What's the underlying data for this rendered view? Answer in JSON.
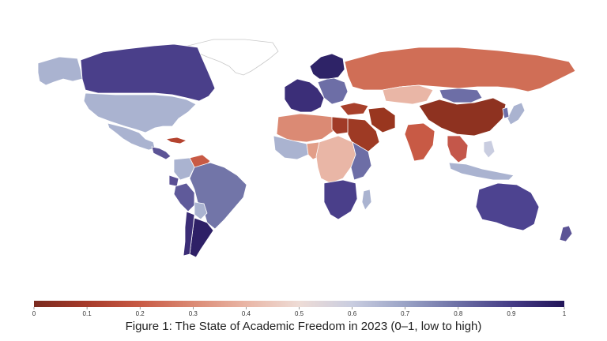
{
  "figure": {
    "caption": "Figure 1: The State of Academic Freedom in 2023 (0–1, low to high)"
  },
  "legend": {
    "type": "continuous",
    "ticks": [
      "0",
      "0.1",
      "0.2",
      "0.3",
      "0.4",
      "0.5",
      "0.6",
      "0.7",
      "0.8",
      "0.9",
      "1"
    ],
    "color_stops": [
      "#7a2a1f",
      "#a63a2a",
      "#c85a45",
      "#db8a74",
      "#e9b6a6",
      "#eedcd6",
      "#c9cde0",
      "#9aa3c6",
      "#6c6fa5",
      "#453c86",
      "#221559"
    ]
  },
  "regions": [
    {
      "name": "Greenland",
      "value": null,
      "color": "#ffffff"
    },
    {
      "name": "Alaska",
      "value": 0.72,
      "color": "#aab3d0"
    },
    {
      "name": "Canada",
      "value": 0.9,
      "color": "#4a3f8a"
    },
    {
      "name": "United States",
      "value": 0.72,
      "color": "#aab3d0"
    },
    {
      "name": "Mexico",
      "value": 0.72,
      "color": "#aab3d0"
    },
    {
      "name": "Central America",
      "value": 0.85,
      "color": "#5c5496"
    },
    {
      "name": "Cuba",
      "value": 0.15,
      "color": "#b4432f"
    },
    {
      "name": "Venezuela",
      "value": 0.2,
      "color": "#c85a45"
    },
    {
      "name": "Colombia",
      "value": 0.72,
      "color": "#aab3d0"
    },
    {
      "name": "Ecuador",
      "value": 0.86,
      "color": "#5a4f94"
    },
    {
      "name": "Peru",
      "value": 0.84,
      "color": "#5f5a9a"
    },
    {
      "name": "Brazil",
      "value": 0.78,
      "color": "#7275a8"
    },
    {
      "name": "Bolivia",
      "value": 0.72,
      "color": "#aab3d0"
    },
    {
      "name": "Argentina",
      "value": 0.95,
      "color": "#2e2066"
    },
    {
      "name": "Chile",
      "value": 0.93,
      "color": "#3b2d76"
    },
    {
      "name": "Europe West",
      "value": 0.92,
      "color": "#3b2e78"
    },
    {
      "name": "Europe East",
      "value": 0.8,
      "color": "#6d6ea6"
    },
    {
      "name": "Scandinavia",
      "value": 0.95,
      "color": "#2e2367"
    },
    {
      "name": "Russia",
      "value": 0.25,
      "color": "#d06e56"
    },
    {
      "name": "Kazakhstan",
      "value": 0.4,
      "color": "#e9b6a6"
    },
    {
      "name": "Mongolia",
      "value": 0.8,
      "color": "#6d6ea6"
    },
    {
      "name": "China",
      "value": 0.05,
      "color": "#8e3220"
    },
    {
      "name": "Iran",
      "value": 0.08,
      "color": "#99361f"
    },
    {
      "name": "Arabia",
      "value": 0.1,
      "color": "#9e3a24"
    },
    {
      "name": "Turkey",
      "value": 0.15,
      "color": "#a8402b"
    },
    {
      "name": "India",
      "value": 0.2,
      "color": "#c85a45"
    },
    {
      "name": "Southeast Asia",
      "value": 0.2,
      "color": "#c4574a"
    },
    {
      "name": "Japan",
      "value": 0.72,
      "color": "#aab3d0"
    },
    {
      "name": "Korea",
      "value": 0.8,
      "color": "#6d6ea6"
    },
    {
      "name": "Indonesia",
      "value": 0.72,
      "color": "#aab3d0"
    },
    {
      "name": "Philippines",
      "value": 0.6,
      "color": "#c9cde0"
    },
    {
      "name": "North Africa",
      "value": 0.3,
      "color": "#db8a74"
    },
    {
      "name": "Egypt",
      "value": 0.1,
      "color": "#a13b27"
    },
    {
      "name": "West Africa",
      "value": 0.7,
      "color": "#aab3d0"
    },
    {
      "name": "Nigeria",
      "value": 0.35,
      "color": "#e29e88"
    },
    {
      "name": "Central Africa",
      "value": 0.4,
      "color": "#e9b6a6"
    },
    {
      "name": "East Africa",
      "value": 0.8,
      "color": "#6d6ea6"
    },
    {
      "name": "Southern Africa",
      "value": 0.9,
      "color": "#4a3f8a"
    },
    {
      "name": "Madagascar",
      "value": 0.7,
      "color": "#aab3d0"
    },
    {
      "name": "Australia",
      "value": 0.88,
      "color": "#4d4390"
    },
    {
      "name": "New Zealand",
      "value": 0.85,
      "color": "#5c5496"
    }
  ]
}
